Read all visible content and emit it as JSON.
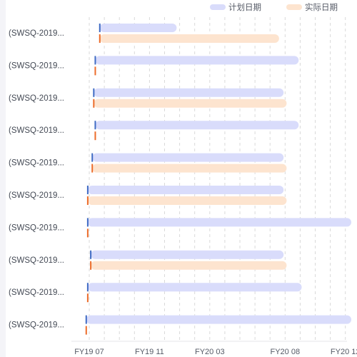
{
  "chart_data": {
    "type": "gantt",
    "legend": {
      "placement": "top-right",
      "items": [
        {
          "name": "计划日期",
          "color": "#d9dcfb"
        },
        {
          "name": "实际日期",
          "color": "#fde4cf"
        }
      ]
    },
    "colors": {
      "plan_bar": "#d9dcfb",
      "actual_bar": "#fde4cf",
      "plan_start_marker": "#3f6bc4",
      "actual_start_marker": "#ec6c2a",
      "grid": "#d9d9d9"
    },
    "x_axis": {
      "ticks": [
        "FY19 07",
        "FY19 11",
        "FY20 03",
        "FY20 08",
        "FY20 12"
      ],
      "tick_months": [
        0,
        4,
        8,
        13,
        17
      ],
      "range_months": [
        -0.8,
        17.8
      ],
      "grid": "dashed"
    },
    "categories": [
      "(SWSQ-2019...",
      "(SWSQ-2019...",
      "(SWSQ-2019...",
      "(SWSQ-2019...",
      "(SWSQ-2019...",
      "(SWSQ-2019...",
      "(SWSQ-2019...",
      "(SWSQ-2019...",
      "(SWSQ-2019...",
      "(SWSQ-2019..."
    ],
    "series": [
      {
        "name": "计划日期",
        "start_months": [
          0.7,
          0.4,
          0.3,
          0.4,
          0.2,
          -0.1,
          -0.1,
          0.1,
          -0.1,
          -0.2
        ],
        "end_months": [
          5.8,
          13.9,
          12.9,
          13.9,
          12.9,
          12.9,
          17.8,
          12.9,
          14.1,
          18.8
        ]
      },
      {
        "name": "实际日期",
        "start_months": [
          0.7,
          0.4,
          0.3,
          0.4,
          0.2,
          -0.1,
          -0.1,
          0.1,
          -0.1,
          -0.2
        ],
        "end_months": [
          12.6,
          null,
          13.1,
          null,
          13.1,
          13.1,
          null,
          13.1,
          null,
          null
        ]
      }
    ]
  }
}
